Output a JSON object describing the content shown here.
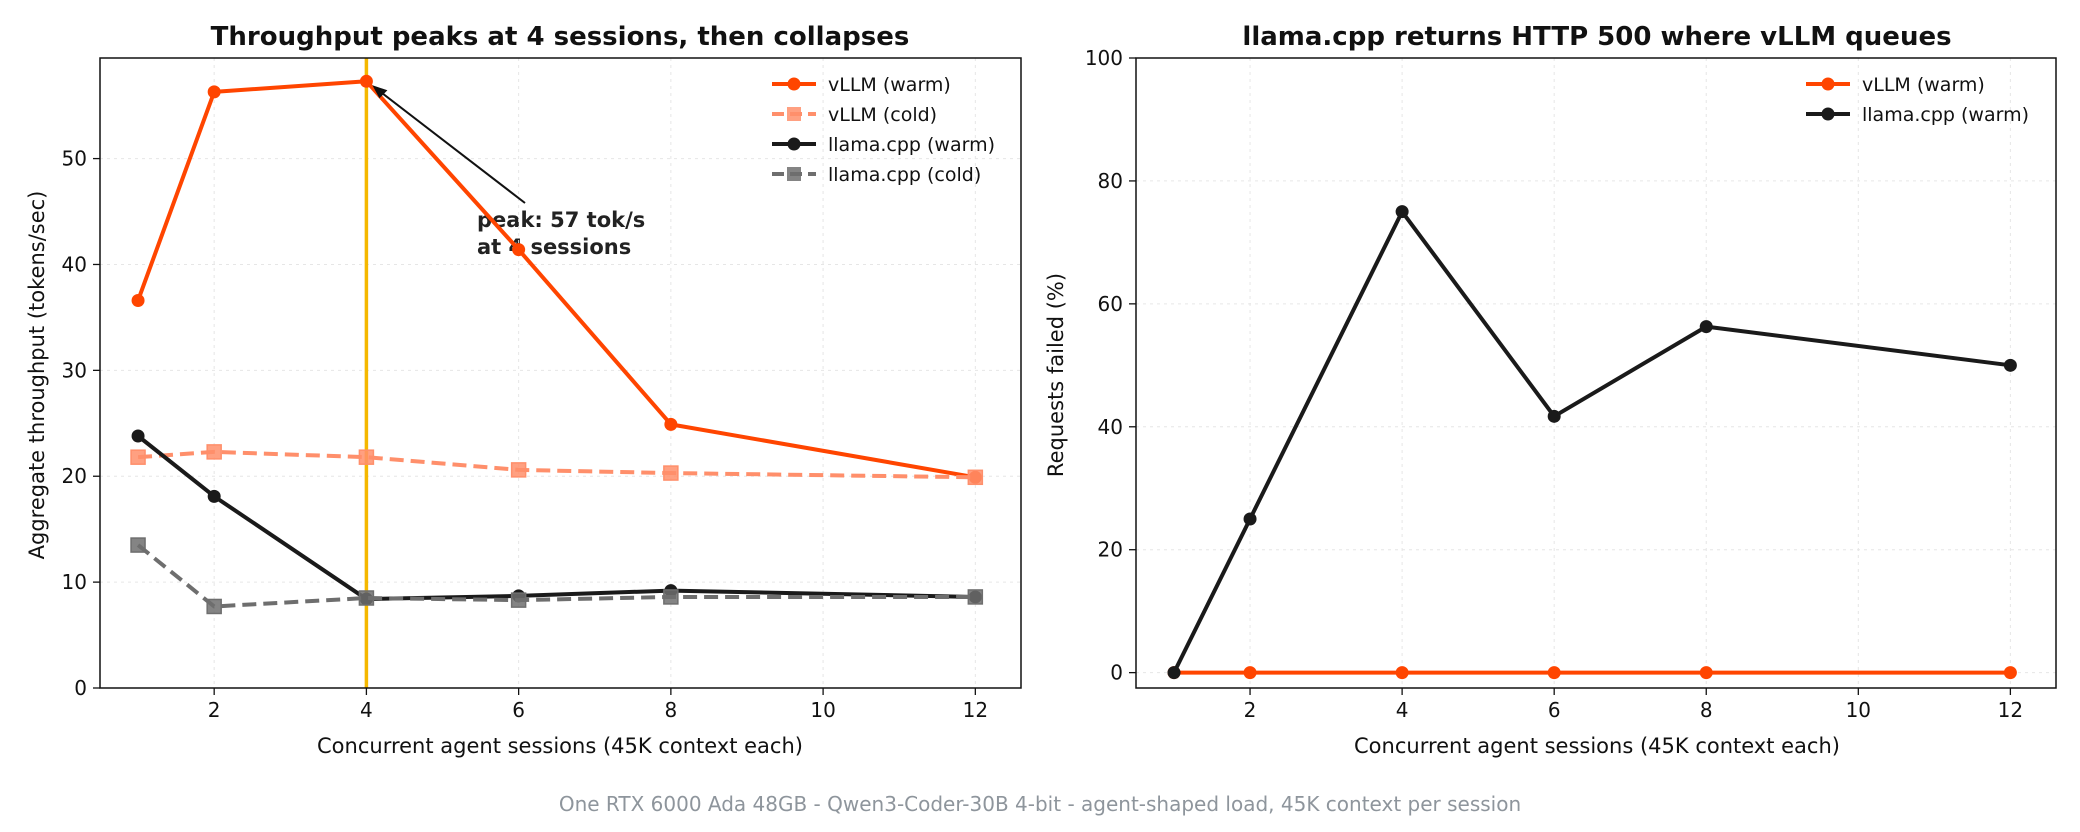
{
  "caption": "One RTX 6000 Ada 48GB  -  Qwen3-Coder-30B 4-bit  -  agent-shaped load, 45K context per session",
  "colors": {
    "vllm": "#ff4500",
    "vllm_cold": "#ff8f6b",
    "llama": "#1a1a1a",
    "llama_cold": "#6e6e6e",
    "peak_line": "#f5b800",
    "grid": "#e6e6e6"
  },
  "chart_data": [
    {
      "type": "line",
      "title": "Throughput peaks at 4 sessions, then collapses",
      "xlabel": "Concurrent agent sessions (45K context each)",
      "ylabel": "Aggregate throughput (tokens/sec)",
      "xlim": [
        0.5,
        12.6
      ],
      "ylim": [
        0,
        59.5
      ],
      "xticks": [
        2,
        4,
        6,
        8,
        10,
        12
      ],
      "yticks": [
        0,
        10,
        20,
        30,
        40,
        50
      ],
      "grid": true,
      "legend_position": "top-right",
      "series": [
        {
          "name": "vLLM (warm)",
          "style": "solid",
          "marker": "circle",
          "color": "#ff4500",
          "x": [
            1,
            2,
            4,
            6,
            8,
            12
          ],
          "y": [
            36.6,
            56.3,
            57.3,
            41.4,
            24.9,
            19.9
          ]
        },
        {
          "name": "vLLM (cold)",
          "style": "dashed",
          "marker": "square",
          "color": "#ff8f6b",
          "x": [
            1,
            2,
            4,
            6,
            8,
            12
          ],
          "y": [
            21.8,
            22.3,
            21.8,
            20.6,
            20.3,
            19.9
          ]
        },
        {
          "name": "llama.cpp (warm)",
          "style": "solid",
          "marker": "circle",
          "color": "#1a1a1a",
          "x": [
            1,
            2,
            4,
            6,
            8,
            12
          ],
          "y": [
            23.8,
            18.1,
            8.4,
            8.7,
            9.2,
            8.6
          ]
        },
        {
          "name": "llama.cpp (cold)",
          "style": "dashed",
          "marker": "square",
          "color": "#6e6e6e",
          "x": [
            1,
            2,
            4,
            6,
            8,
            12
          ],
          "y": [
            13.5,
            7.7,
            8.5,
            8.3,
            8.6,
            8.6
          ]
        }
      ],
      "vline_x": 4,
      "annotation": {
        "line1": "peak: 57 tok/s",
        "line2": "at 4 sessions",
        "point_x": 4,
        "point_y": 57.3
      }
    },
    {
      "type": "line",
      "title": "llama.cpp returns HTTP 500 where vLLM queues",
      "xlabel": "Concurrent agent sessions (45K context each)",
      "ylabel": "Requests failed (%)",
      "xlim": [
        0.5,
        12.6
      ],
      "ylim": [
        -2.5,
        100
      ],
      "xticks": [
        2,
        4,
        6,
        8,
        10,
        12
      ],
      "yticks": [
        0,
        20,
        40,
        60,
        80,
        100
      ],
      "grid": true,
      "legend_position": "top-right",
      "series": [
        {
          "name": "vLLM (warm)",
          "style": "solid",
          "marker": "circle",
          "color": "#ff4500",
          "x": [
            1,
            2,
            4,
            6,
            8,
            12
          ],
          "y": [
            0,
            0,
            0,
            0,
            0,
            0
          ]
        },
        {
          "name": "llama.cpp (warm)",
          "style": "solid",
          "marker": "circle",
          "color": "#1a1a1a",
          "x": [
            1,
            2,
            4,
            6,
            8,
            12
          ],
          "y": [
            0,
            25,
            75,
            41.7,
            56.3,
            50
          ]
        }
      ]
    }
  ]
}
